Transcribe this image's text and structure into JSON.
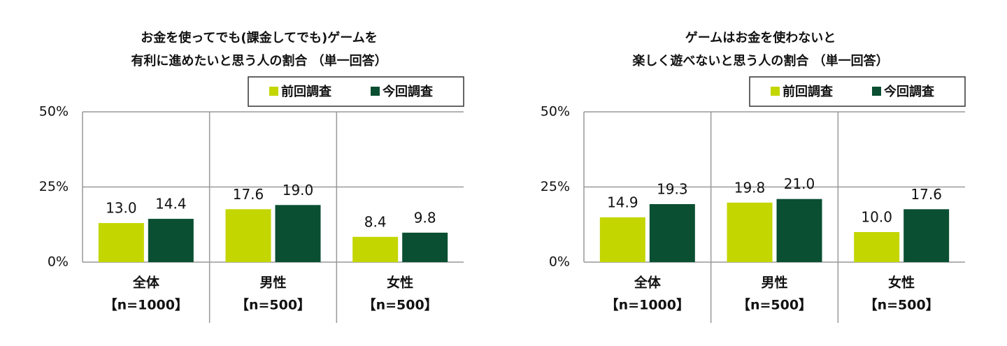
{
  "chart_data": [
    {
      "type": "bar",
      "title": [
        "お金を使ってでも(課金してでも)ゲームを",
        "有利に進めたいと思う人の割合 （単一回答）"
      ],
      "categories": [
        "全体",
        "男性",
        "女性"
      ],
      "category_notes": [
        "【n=1000】",
        "【n=500】",
        "【n=500】"
      ],
      "series": [
        {
          "name": "前回調査",
          "color": "#c3d600",
          "values": [
            13.0,
            17.6,
            8.4
          ],
          "value_labels": [
            "13.0",
            "17.6",
            "8.4"
          ]
        },
        {
          "name": "今回調査",
          "color": "#0a4f32",
          "values": [
            14.4,
            19.0,
            9.8
          ],
          "value_labels": [
            "14.4",
            "19.0",
            "9.8"
          ]
        }
      ],
      "ylim": [
        0,
        50
      ],
      "yticks": [
        {
          "value": 0,
          "label": "0%"
        },
        {
          "value": 25,
          "label": "25%"
        },
        {
          "value": 50,
          "label": "50%"
        }
      ],
      "grid": true,
      "legend": "top-right"
    },
    {
      "type": "bar",
      "title": [
        "ゲームはお金を使わないと",
        "楽しく遊べないと思う人の割合 （単一回答）"
      ],
      "categories": [
        "全体",
        "男性",
        "女性"
      ],
      "category_notes": [
        "【n=1000】",
        "【n=500】",
        "【n=500】"
      ],
      "series": [
        {
          "name": "前回調査",
          "color": "#c3d600",
          "values": [
            14.9,
            19.8,
            10.0
          ],
          "value_labels": [
            "14.9",
            "19.8",
            "10.0"
          ]
        },
        {
          "name": "今回調査",
          "color": "#0a4f32",
          "values": [
            19.3,
            21.0,
            17.6
          ],
          "value_labels": [
            "19.3",
            "21.0",
            "17.6"
          ]
        }
      ],
      "ylim": [
        0,
        50
      ],
      "yticks": [
        {
          "value": 0,
          "label": "0%"
        },
        {
          "value": 25,
          "label": "25%"
        },
        {
          "value": 50,
          "label": "50%"
        }
      ],
      "grid": true,
      "legend": "top-right"
    }
  ]
}
